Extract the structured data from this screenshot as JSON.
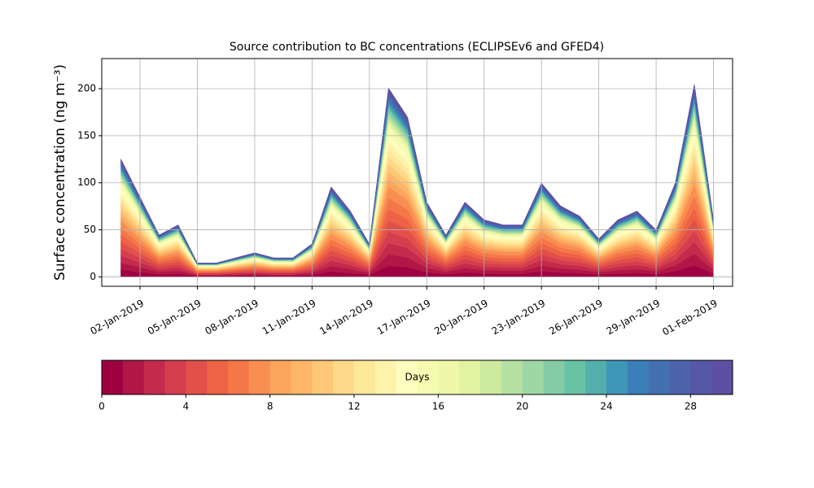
{
  "chart_data": {
    "type": "stacked_area",
    "title": "Source contribution to BC concentrations (ECLIPSEv6 and GFED4)",
    "ylabel": "Surface concentration (ng m⁻³)",
    "x": [
      "01-Jan-2019",
      "02-Jan-2019",
      "03-Jan-2019",
      "04-Jan-2019",
      "05-Jan-2019",
      "06-Jan-2019",
      "07-Jan-2019",
      "08-Jan-2019",
      "09-Jan-2019",
      "10-Jan-2019",
      "11-Jan-2019",
      "12-Jan-2019",
      "13-Jan-2019",
      "14-Jan-2019",
      "15-Jan-2019",
      "16-Jan-2019",
      "17-Jan-2019",
      "18-Jan-2019",
      "19-Jan-2019",
      "20-Jan-2019",
      "21-Jan-2019",
      "22-Jan-2019",
      "23-Jan-2019",
      "24-Jan-2019",
      "25-Jan-2019",
      "26-Jan-2019",
      "27-Jan-2019",
      "28-Jan-2019",
      "29-Jan-2019",
      "30-Jan-2019",
      "31-Jan-2019",
      "01-Feb-2019"
    ],
    "xlim": [
      "31-Dec-2018",
      "02-Feb-2019"
    ],
    "xticks": [
      "02-Jan-2019",
      "05-Jan-2019",
      "08-Jan-2019",
      "11-Jan-2019",
      "14-Jan-2019",
      "17-Jan-2019",
      "20-Jan-2019",
      "23-Jan-2019",
      "26-Jan-2019",
      "29-Jan-2019",
      "01-Feb-2019"
    ],
    "ylim": [
      -10,
      232
    ],
    "yticks": [
      0,
      50,
      100,
      150,
      200
    ],
    "grid": true,
    "series": [
      {
        "color": "#9e0142",
        "values": [
          7.5,
          5.1,
          2.7,
          3.3,
          0.9,
          0.9,
          1.2,
          1.5,
          1.2,
          1.2,
          2.1,
          5.7,
          4.2,
          2.1,
          12,
          10.2,
          4.8,
          2.7,
          4.8,
          3.6,
          3.3,
          3.3,
          6,
          4.5,
          3.9,
          2.4,
          3.6,
          4.2,
          3,
          6,
          12.3,
          3.6
        ]
      },
      {
        "color": "#b01646",
        "values": [
          7.5,
          5.1,
          2.7,
          3.3,
          0.9,
          0.9,
          1.2,
          1.5,
          1.2,
          1.2,
          2.1,
          5.7,
          4.2,
          2.1,
          12,
          10.2,
          4.8,
          2.7,
          4.8,
          3.6,
          3.3,
          3.3,
          6,
          4.5,
          3.9,
          2.4,
          3.6,
          4.2,
          3,
          6,
          12.3,
          3.6
        ]
      },
      {
        "color": "#c32a4b",
        "values": [
          7.5,
          5.1,
          2.7,
          3.3,
          0.9,
          0.9,
          1.2,
          1.5,
          1.2,
          1.2,
          2.1,
          5.7,
          4.2,
          2.1,
          12,
          10.2,
          4.8,
          2.7,
          4.8,
          3.6,
          3.3,
          3.3,
          6,
          4.5,
          3.9,
          2.4,
          3.6,
          4.2,
          3,
          6,
          12.3,
          3.6
        ]
      },
      {
        "color": "#d53e4f",
        "values": [
          7.5,
          5.1,
          2.7,
          3.3,
          0.9,
          0.9,
          1.2,
          1.5,
          1.2,
          1.2,
          2.1,
          5.7,
          4.2,
          2.1,
          12,
          10.2,
          4.8,
          2.7,
          4.8,
          3.6,
          3.3,
          3.3,
          6,
          4.5,
          3.9,
          2.4,
          3.6,
          4.2,
          3,
          6,
          12.3,
          3.6
        ]
      },
      {
        "color": "#e1504a",
        "values": [
          7.5,
          5.1,
          2.7,
          3.3,
          0.9,
          0.9,
          1.2,
          1.5,
          1.2,
          1.2,
          2.1,
          5.7,
          4.2,
          2.1,
          12,
          10.2,
          4.8,
          2.7,
          4.8,
          3.6,
          3.3,
          3.3,
          6,
          4.5,
          3.9,
          2.4,
          3.6,
          4.2,
          3,
          6,
          12.3,
          3.6
        ]
      },
      {
        "color": "#ec6345",
        "values": [
          7.5,
          5.1,
          2.7,
          3.3,
          0.9,
          0.9,
          1.2,
          1.5,
          1.2,
          1.2,
          2.1,
          5.7,
          4.2,
          2.1,
          12,
          10.2,
          4.8,
          2.7,
          4.8,
          3.6,
          3.3,
          3.3,
          6,
          4.5,
          3.9,
          2.4,
          3.6,
          4.2,
          3,
          6,
          12.3,
          3.6
        ]
      },
      {
        "color": "#f57748",
        "values": [
          7.5,
          5.1,
          2.7,
          3.3,
          0.9,
          0.9,
          1.2,
          1.5,
          1.2,
          1.2,
          2.1,
          5.7,
          4.2,
          2.1,
          12,
          10.2,
          4.8,
          2.7,
          4.8,
          3.6,
          3.3,
          3.3,
          6,
          4.5,
          3.9,
          2.4,
          3.6,
          4.2,
          3,
          6,
          12.3,
          3.6
        ]
      },
      {
        "color": "#f98e52",
        "values": [
          7.5,
          5.1,
          2.7,
          3.3,
          0.9,
          0.9,
          1.2,
          1.5,
          1.2,
          1.2,
          2.1,
          5.7,
          4.2,
          2.1,
          12,
          10.2,
          4.8,
          2.7,
          4.8,
          3.6,
          3.3,
          3.3,
          6,
          4.5,
          3.9,
          2.4,
          3.6,
          4.2,
          3,
          6,
          12.3,
          3.6
        ]
      },
      {
        "color": "#fca55d",
        "values": [
          5,
          3.4,
          1.8,
          2.2,
          0.6,
          0.6,
          0.8,
          1,
          0.8,
          0.8,
          1.4,
          3.8,
          2.8,
          1.4,
          8,
          6.8,
          3.2,
          1.8,
          3.2,
          2.4,
          2.2,
          2.2,
          4,
          3,
          2.6,
          1.6,
          2.4,
          2.8,
          2,
          4,
          8.2,
          2.4
        ]
      },
      {
        "color": "#fdb768",
        "values": [
          5,
          3.4,
          1.8,
          2.2,
          0.6,
          0.6,
          0.8,
          1,
          0.8,
          0.8,
          1.4,
          3.8,
          2.8,
          1.4,
          8,
          6.8,
          3.2,
          1.8,
          3.2,
          2.4,
          2.2,
          2.2,
          4,
          3,
          2.6,
          1.6,
          2.4,
          2.8,
          2,
          4,
          8.2,
          2.4
        ]
      },
      {
        "color": "#fec877",
        "values": [
          5,
          3.4,
          1.8,
          2.2,
          0.6,
          0.6,
          0.8,
          1,
          0.8,
          0.8,
          1.4,
          3.8,
          2.8,
          1.4,
          8,
          6.8,
          3.2,
          1.8,
          3.2,
          2.4,
          2.2,
          2.2,
          4,
          3,
          2.6,
          1.6,
          2.4,
          2.8,
          2,
          4,
          8.2,
          2.4
        ]
      },
      {
        "color": "#fed989",
        "values": [
          5,
          3.4,
          1.8,
          2.2,
          0.6,
          0.6,
          0.8,
          1,
          0.8,
          0.8,
          1.4,
          3.8,
          2.8,
          1.4,
          8,
          6.8,
          3.2,
          1.8,
          3.2,
          2.4,
          2.2,
          2.2,
          4,
          3,
          2.6,
          1.6,
          2.4,
          2.8,
          2,
          4,
          8.2,
          2.4
        ]
      },
      {
        "color": "#fee89a",
        "values": [
          5,
          3.4,
          1.8,
          2.2,
          0.6,
          0.6,
          0.8,
          1,
          0.8,
          0.8,
          1.4,
          3.8,
          2.8,
          1.4,
          8,
          6.8,
          3.2,
          1.8,
          3.2,
          2.4,
          2.2,
          2.2,
          4,
          3,
          2.6,
          1.6,
          2.4,
          2.8,
          2,
          4,
          8.2,
          2.4
        ]
      },
      {
        "color": "#fff3ac",
        "values": [
          5,
          3.4,
          1.8,
          2.2,
          0.6,
          0.6,
          0.8,
          1,
          0.8,
          0.8,
          1.4,
          3.8,
          2.8,
          1.4,
          8,
          6.8,
          3.2,
          1.8,
          3.2,
          2.4,
          2.2,
          2.2,
          4,
          3,
          2.6,
          1.6,
          2.4,
          2.8,
          2,
          4,
          8.2,
          2.4
        ]
      },
      {
        "color": "#fffebe",
        "values": [
          5,
          3.4,
          1.8,
          2.2,
          0.6,
          0.6,
          0.8,
          1,
          0.8,
          0.8,
          1.4,
          3.8,
          2.8,
          1.4,
          8,
          6.8,
          3.2,
          1.8,
          3.2,
          2.4,
          2.2,
          2.2,
          4,
          3,
          2.6,
          1.6,
          2.4,
          2.8,
          2,
          4,
          8.2,
          2.4
        ]
      },
      {
        "color": "#f6fbb2",
        "values": [
          5,
          3.4,
          1.8,
          2.2,
          0.6,
          0.6,
          0.8,
          1,
          0.8,
          0.8,
          1.4,
          3.8,
          2.8,
          1.4,
          8,
          6.8,
          3.2,
          1.8,
          3.2,
          2.4,
          2.2,
          2.2,
          4,
          3,
          2.6,
          1.6,
          2.4,
          2.8,
          2,
          4,
          8.2,
          2.4
        ]
      },
      {
        "color": "#eef8a8",
        "values": [
          1.8,
          1.2,
          0.6,
          0.8,
          0.2,
          0.2,
          0.3,
          0.4,
          0.3,
          0.3,
          0.5,
          1.4,
          1,
          0.5,
          2.9,
          2.4,
          1.1,
          0.6,
          1.1,
          0.9,
          0.8,
          0.8,
          1.4,
          1.1,
          0.9,
          0.6,
          0.9,
          1,
          0.7,
          1.4,
          2.9,
          0.9
        ]
      },
      {
        "color": "#e2f39f",
        "values": [
          1.8,
          1.2,
          0.6,
          0.8,
          0.2,
          0.2,
          0.3,
          0.4,
          0.3,
          0.3,
          0.5,
          1.4,
          1,
          0.5,
          2.9,
          2.4,
          1.1,
          0.6,
          1.1,
          0.9,
          0.8,
          0.8,
          1.4,
          1.1,
          0.9,
          0.6,
          0.9,
          1,
          0.7,
          1.4,
          2.9,
          0.9
        ]
      },
      {
        "color": "#cdea9f",
        "values": [
          1.8,
          1.2,
          0.6,
          0.8,
          0.2,
          0.2,
          0.3,
          0.4,
          0.3,
          0.3,
          0.5,
          1.4,
          1,
          0.5,
          2.9,
          2.4,
          1.1,
          0.6,
          1.1,
          0.9,
          0.8,
          0.8,
          1.4,
          1.1,
          0.9,
          0.6,
          0.9,
          1,
          0.7,
          1.4,
          2.9,
          0.9
        ]
      },
      {
        "color": "#b5e1a2",
        "values": [
          1.8,
          1.2,
          0.6,
          0.8,
          0.2,
          0.2,
          0.3,
          0.4,
          0.3,
          0.3,
          0.5,
          1.4,
          1,
          0.5,
          2.9,
          2.4,
          1.1,
          0.6,
          1.1,
          0.9,
          0.8,
          0.8,
          1.4,
          1.1,
          0.9,
          0.6,
          0.9,
          1,
          0.7,
          1.4,
          2.9,
          0.9
        ]
      },
      {
        "color": "#9dd7a4",
        "values": [
          1.8,
          1.2,
          0.6,
          0.8,
          0.2,
          0.2,
          0.3,
          0.4,
          0.3,
          0.3,
          0.5,
          1.4,
          1,
          0.5,
          2.9,
          2.4,
          1.1,
          0.6,
          1.1,
          0.9,
          0.8,
          0.8,
          1.4,
          1.1,
          0.9,
          0.6,
          0.9,
          1,
          0.7,
          1.4,
          2.9,
          0.9
        ]
      },
      {
        "color": "#84cca5",
        "values": [
          1.8,
          1.2,
          0.6,
          0.8,
          0.2,
          0.2,
          0.3,
          0.4,
          0.3,
          0.3,
          0.5,
          1.4,
          1,
          0.5,
          2.9,
          2.4,
          1.1,
          0.6,
          1.1,
          0.9,
          0.8,
          0.8,
          1.4,
          1.1,
          0.9,
          0.6,
          0.9,
          1,
          0.7,
          1.4,
          2.9,
          0.9
        ]
      },
      {
        "color": "#6ac2a5",
        "values": [
          1.8,
          1.2,
          0.6,
          0.8,
          0.2,
          0.2,
          0.3,
          0.4,
          0.3,
          0.3,
          0.5,
          1.4,
          1,
          0.5,
          2.9,
          2.4,
          1.1,
          0.6,
          1.1,
          0.9,
          0.8,
          0.8,
          1.4,
          1.1,
          0.9,
          0.6,
          0.9,
          1,
          0.7,
          1.4,
          2.9,
          0.9
        ]
      },
      {
        "color": "#54aead",
        "values": [
          1.8,
          1.2,
          0.6,
          0.8,
          0.2,
          0.2,
          0.3,
          0.4,
          0.3,
          0.3,
          0.5,
          1.4,
          1,
          0.5,
          2.9,
          2.4,
          1.1,
          0.6,
          1.1,
          0.9,
          0.8,
          0.8,
          1.4,
          1.1,
          0.9,
          0.6,
          0.9,
          1,
          0.7,
          1.4,
          2.9,
          0.9
        ]
      },
      {
        "color": "#3f97b7",
        "values": [
          1.8,
          1.2,
          0.6,
          0.8,
          0.2,
          0.2,
          0.3,
          0.4,
          0.3,
          0.3,
          0.5,
          1.4,
          1,
          0.5,
          2.9,
          2.4,
          1.1,
          0.6,
          1.1,
          0.9,
          0.8,
          0.8,
          1.4,
          1.1,
          0.9,
          0.6,
          0.9,
          1,
          0.7,
          1.4,
          2.9,
          0.9
        ]
      },
      {
        "color": "#3a7fb8",
        "values": [
          1.8,
          1.2,
          0.6,
          0.8,
          0.2,
          0.2,
          0.3,
          0.4,
          0.3,
          0.3,
          0.5,
          1.4,
          1,
          0.5,
          2.9,
          2.4,
          1.1,
          0.6,
          1.1,
          0.9,
          0.8,
          0.8,
          1.4,
          1.1,
          0.9,
          0.6,
          0.9,
          1,
          0.7,
          1.4,
          2.9,
          0.9
        ]
      },
      {
        "color": "#4470b2",
        "values": [
          1.8,
          1.2,
          0.6,
          0.8,
          0.2,
          0.2,
          0.3,
          0.4,
          0.3,
          0.3,
          0.5,
          1.4,
          1,
          0.5,
          2.9,
          2.4,
          1.1,
          0.6,
          1.1,
          0.9,
          0.8,
          0.8,
          1.4,
          1.1,
          0.9,
          0.6,
          0.9,
          1,
          0.7,
          1.4,
          2.9,
          0.9
        ]
      },
      {
        "color": "#4d63ab",
        "values": [
          1.8,
          1.2,
          0.6,
          0.8,
          0.2,
          0.2,
          0.3,
          0.4,
          0.3,
          0.3,
          0.5,
          1.4,
          1,
          0.5,
          2.9,
          2.4,
          1.1,
          0.6,
          1.1,
          0.9,
          0.8,
          0.8,
          1.4,
          1.1,
          0.9,
          0.6,
          0.9,
          1,
          0.7,
          1.4,
          2.9,
          0.9
        ]
      },
      {
        "color": "#5657a6",
        "values": [
          1.8,
          1.2,
          0.6,
          0.8,
          0.2,
          0.2,
          0.3,
          0.4,
          0.3,
          0.3,
          0.5,
          1.4,
          1,
          0.5,
          2.9,
          2.4,
          1.1,
          0.6,
          1.1,
          0.9,
          0.8,
          0.8,
          1.4,
          1.1,
          0.9,
          0.6,
          0.9,
          1,
          0.7,
          1.4,
          2.9,
          0.9
        ]
      },
      {
        "color": "#5e4fa2",
        "values": [
          1.8,
          1.2,
          0.6,
          0.8,
          0.2,
          0.2,
          0.3,
          0.4,
          0.3,
          0.3,
          0.5,
          1.4,
          1,
          0.5,
          2.9,
          2.4,
          1.1,
          0.6,
          1.1,
          0.9,
          0.8,
          0.8,
          1.4,
          1.1,
          0.9,
          0.6,
          0.9,
          1,
          0.7,
          1.4,
          2.9,
          0.9
        ]
      }
    ],
    "colorbar": {
      "label": "Days",
      "lim": [
        0,
        30
      ],
      "ticks": [
        0,
        4,
        8,
        12,
        16,
        20,
        24,
        28
      ]
    }
  }
}
